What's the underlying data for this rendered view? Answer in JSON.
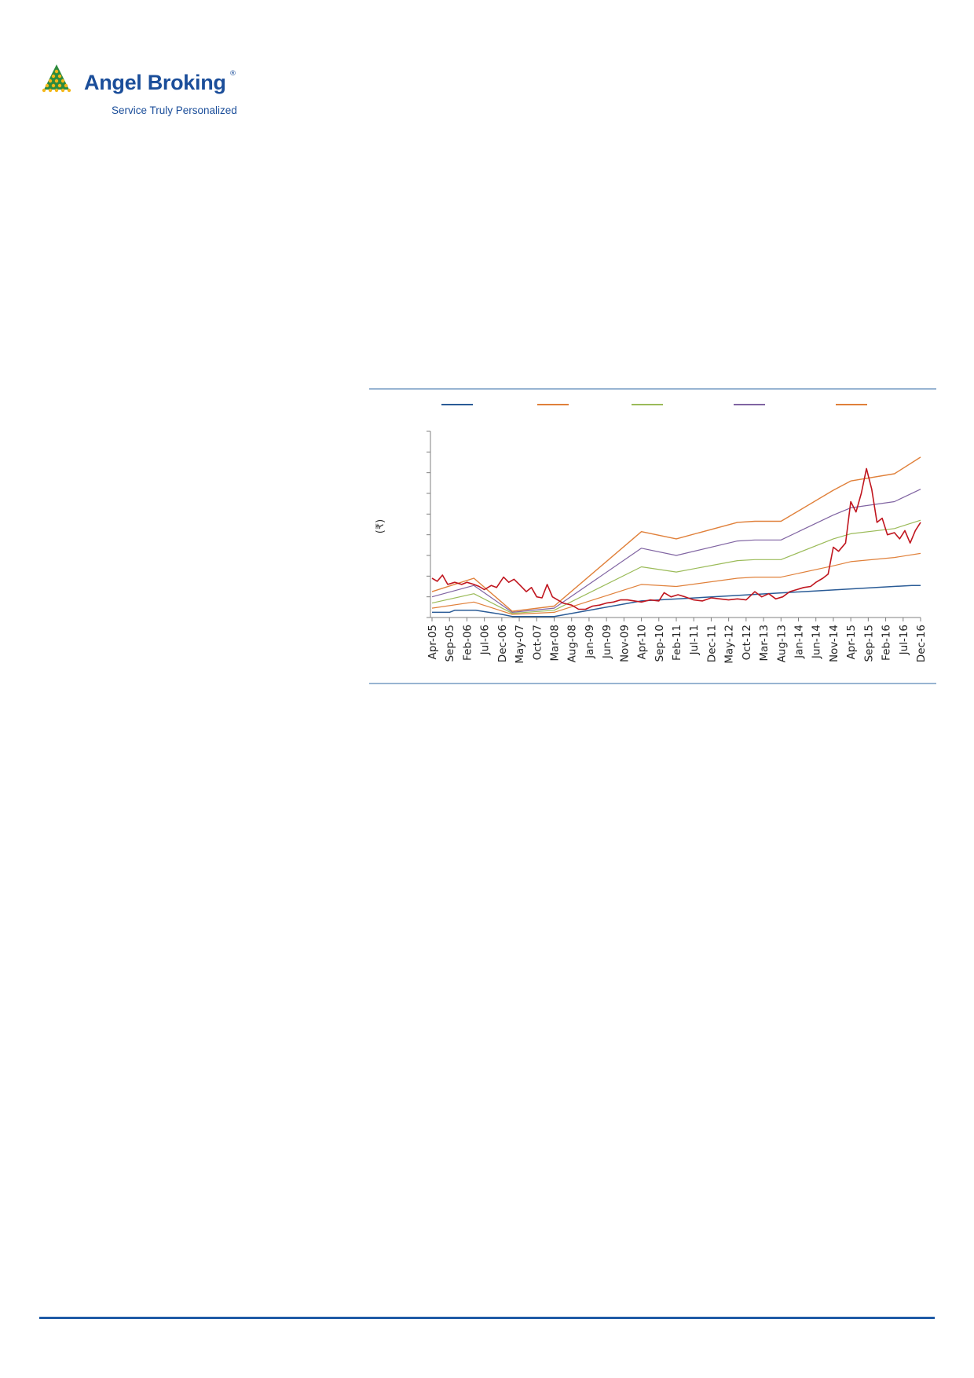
{
  "logo": {
    "brand": "Angel Broking",
    "registered_mark": "®",
    "tagline": "Service Truly Personalized"
  },
  "colors": {
    "brand_blue": "#1b4e9a",
    "logo_green": "#2e8b3e",
    "logo_yellow": "#f5b819",
    "rule_blue": "#5b86b8",
    "footer_rule": "#1f5aa6"
  },
  "chart_data": {
    "type": "line",
    "title": "",
    "xlabel": "",
    "ylabel": "(₹)",
    "y_tick_labels": "none",
    "y_ticks": 9,
    "grid": false,
    "legend_position": "top",
    "x_tick_labels": [
      "Apr-05",
      "Sep-05",
      "Feb-06",
      "Jul-06",
      "Dec-06",
      "May-07",
      "Oct-07",
      "Mar-08",
      "Aug-08",
      "Jan-09",
      "Jun-09",
      "Nov-09",
      "Apr-10",
      "Sep-10",
      "Feb-11",
      "Jul-11",
      "Dec-11",
      "May-12",
      "Oct-12",
      "Mar-13",
      "Aug-13",
      "Jan-14",
      "Jun-14",
      "Nov-14",
      "Apr-15",
      "Sep-15",
      "Feb-16",
      "Jul-16",
      "Dec-16"
    ],
    "ylim": [
      0,
      9
    ],
    "series": [
      {
        "color": "#2a5b96",
        "width": 1.5,
        "points": [
          [
            0,
            0.25
          ],
          [
            1,
            0.25
          ],
          [
            1.3,
            0.35
          ],
          [
            2.5,
            0.35
          ],
          [
            4,
            0.15
          ],
          [
            4.6,
            0.05
          ],
          [
            7,
            0.05
          ],
          [
            12,
            0.8
          ],
          [
            27.5,
            1.55
          ],
          [
            28,
            1.55
          ]
        ]
      },
      {
        "color": "#e0803a",
        "width": 1.2,
        "points": [
          [
            0,
            0.45
          ],
          [
            2.4,
            0.75
          ],
          [
            4.6,
            0.15
          ],
          [
            7,
            0.25
          ],
          [
            12,
            1.6
          ],
          [
            14,
            1.5
          ],
          [
            17.5,
            1.9
          ],
          [
            18.5,
            1.95
          ],
          [
            20,
            1.95
          ],
          [
            23,
            2.5
          ],
          [
            24,
            2.7
          ],
          [
            26.5,
            2.9
          ],
          [
            28,
            3.1
          ]
        ]
      },
      {
        "color": "#9bbb59",
        "width": 1.2,
        "points": [
          [
            0,
            0.7
          ],
          [
            2.4,
            1.15
          ],
          [
            4.6,
            0.2
          ],
          [
            7,
            0.35
          ],
          [
            12,
            2.45
          ],
          [
            14,
            2.2
          ],
          [
            17.5,
            2.75
          ],
          [
            18.5,
            2.8
          ],
          [
            20,
            2.8
          ],
          [
            23,
            3.8
          ],
          [
            24,
            4.05
          ],
          [
            26.5,
            4.3
          ],
          [
            28,
            4.7
          ]
        ]
      },
      {
        "color": "#8064a2",
        "width": 1.2,
        "points": [
          [
            0,
            1.0
          ],
          [
            2.4,
            1.55
          ],
          [
            4.6,
            0.25
          ],
          [
            7,
            0.45
          ],
          [
            12,
            3.35
          ],
          [
            14,
            3.0
          ],
          [
            17.5,
            3.7
          ],
          [
            18.5,
            3.75
          ],
          [
            20,
            3.75
          ],
          [
            23,
            4.95
          ],
          [
            24,
            5.3
          ],
          [
            26.5,
            5.6
          ],
          [
            28,
            6.2
          ]
        ]
      },
      {
        "color": "#e0803a",
        "width": 1.4,
        "points": [
          [
            0,
            1.25
          ],
          [
            2.4,
            1.9
          ],
          [
            4.6,
            0.3
          ],
          [
            7,
            0.55
          ],
          [
            12,
            4.15
          ],
          [
            14,
            3.8
          ],
          [
            17.5,
            4.6
          ],
          [
            18.5,
            4.65
          ],
          [
            20,
            4.65
          ],
          [
            23,
            6.15
          ],
          [
            24,
            6.6
          ],
          [
            26.5,
            6.95
          ],
          [
            28,
            7.75
          ]
        ]
      },
      {
        "color": "#c0161f",
        "width": 1.6,
        "points": [
          [
            0,
            1.9
          ],
          [
            0.3,
            1.75
          ],
          [
            0.6,
            2.05
          ],
          [
            0.9,
            1.6
          ],
          [
            1.3,
            1.7
          ],
          [
            1.7,
            1.6
          ],
          [
            2.0,
            1.7
          ],
          [
            2.4,
            1.6
          ],
          [
            2.7,
            1.5
          ],
          [
            3,
            1.35
          ],
          [
            3.4,
            1.55
          ],
          [
            3.7,
            1.45
          ],
          [
            4.1,
            1.95
          ],
          [
            4.4,
            1.7
          ],
          [
            4.7,
            1.85
          ],
          [
            5,
            1.6
          ],
          [
            5.4,
            1.25
          ],
          [
            5.7,
            1.45
          ],
          [
            6,
            1.0
          ],
          [
            6.3,
            0.95
          ],
          [
            6.6,
            1.6
          ],
          [
            6.9,
            1.0
          ],
          [
            7.2,
            0.85
          ],
          [
            7.5,
            0.7
          ],
          [
            8,
            0.6
          ],
          [
            8.4,
            0.4
          ],
          [
            8.8,
            0.4
          ],
          [
            9.2,
            0.55
          ],
          [
            9.6,
            0.6
          ],
          [
            10,
            0.7
          ],
          [
            10.4,
            0.75
          ],
          [
            10.8,
            0.85
          ],
          [
            11.2,
            0.85
          ],
          [
            11.6,
            0.8
          ],
          [
            12,
            0.75
          ],
          [
            12.5,
            0.85
          ],
          [
            13,
            0.8
          ],
          [
            13.3,
            1.2
          ],
          [
            13.7,
            1.0
          ],
          [
            14.1,
            1.1
          ],
          [
            14.5,
            1.0
          ],
          [
            15,
            0.85
          ],
          [
            15.5,
            0.8
          ],
          [
            16,
            0.95
          ],
          [
            16.5,
            0.9
          ],
          [
            17,
            0.85
          ],
          [
            17.5,
            0.9
          ],
          [
            18,
            0.85
          ],
          [
            18.5,
            1.25
          ],
          [
            18.9,
            1.0
          ],
          [
            19.3,
            1.15
          ],
          [
            19.7,
            0.9
          ],
          [
            20.1,
            1.0
          ],
          [
            20.5,
            1.25
          ],
          [
            20.9,
            1.35
          ],
          [
            21.3,
            1.45
          ],
          [
            21.7,
            1.5
          ],
          [
            22,
            1.7
          ],
          [
            22.4,
            1.9
          ],
          [
            22.7,
            2.1
          ],
          [
            23,
            3.4
          ],
          [
            23.3,
            3.2
          ],
          [
            23.7,
            3.6
          ],
          [
            24,
            5.6
          ],
          [
            24.3,
            5.1
          ],
          [
            24.6,
            6.0
          ],
          [
            24.9,
            7.2
          ],
          [
            25.2,
            6.2
          ],
          [
            25.5,
            4.6
          ],
          [
            25.8,
            4.8
          ],
          [
            26.1,
            4.0
          ],
          [
            26.5,
            4.1
          ],
          [
            26.8,
            3.8
          ],
          [
            27.1,
            4.2
          ],
          [
            27.4,
            3.6
          ],
          [
            27.7,
            4.2
          ],
          [
            28,
            4.6
          ]
        ]
      }
    ]
  }
}
